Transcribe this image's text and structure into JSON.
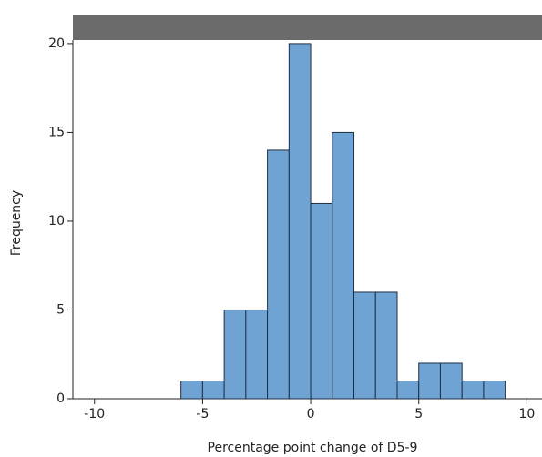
{
  "chart_data": {
    "type": "histogram",
    "x_label": "Percentage point change of D5-9",
    "y_label": "Frequency",
    "bins": [
      -6,
      -5,
      -4,
      -3,
      -2,
      -1,
      0,
      1,
      2,
      3,
      4,
      5,
      6,
      7,
      8,
      9
    ],
    "values": [
      1,
      1,
      5,
      5,
      14,
      20,
      11,
      15,
      6,
      6,
      1,
      2,
      2,
      1,
      1
    ],
    "color": "#6fa3d4",
    "xlim": [
      -11,
      10.7
    ],
    "xticks": [
      -10,
      -5,
      0,
      5,
      10
    ],
    "ylim": [
      0,
      20.2
    ],
    "yticks": [
      0,
      5,
      10,
      15,
      20
    ]
  }
}
